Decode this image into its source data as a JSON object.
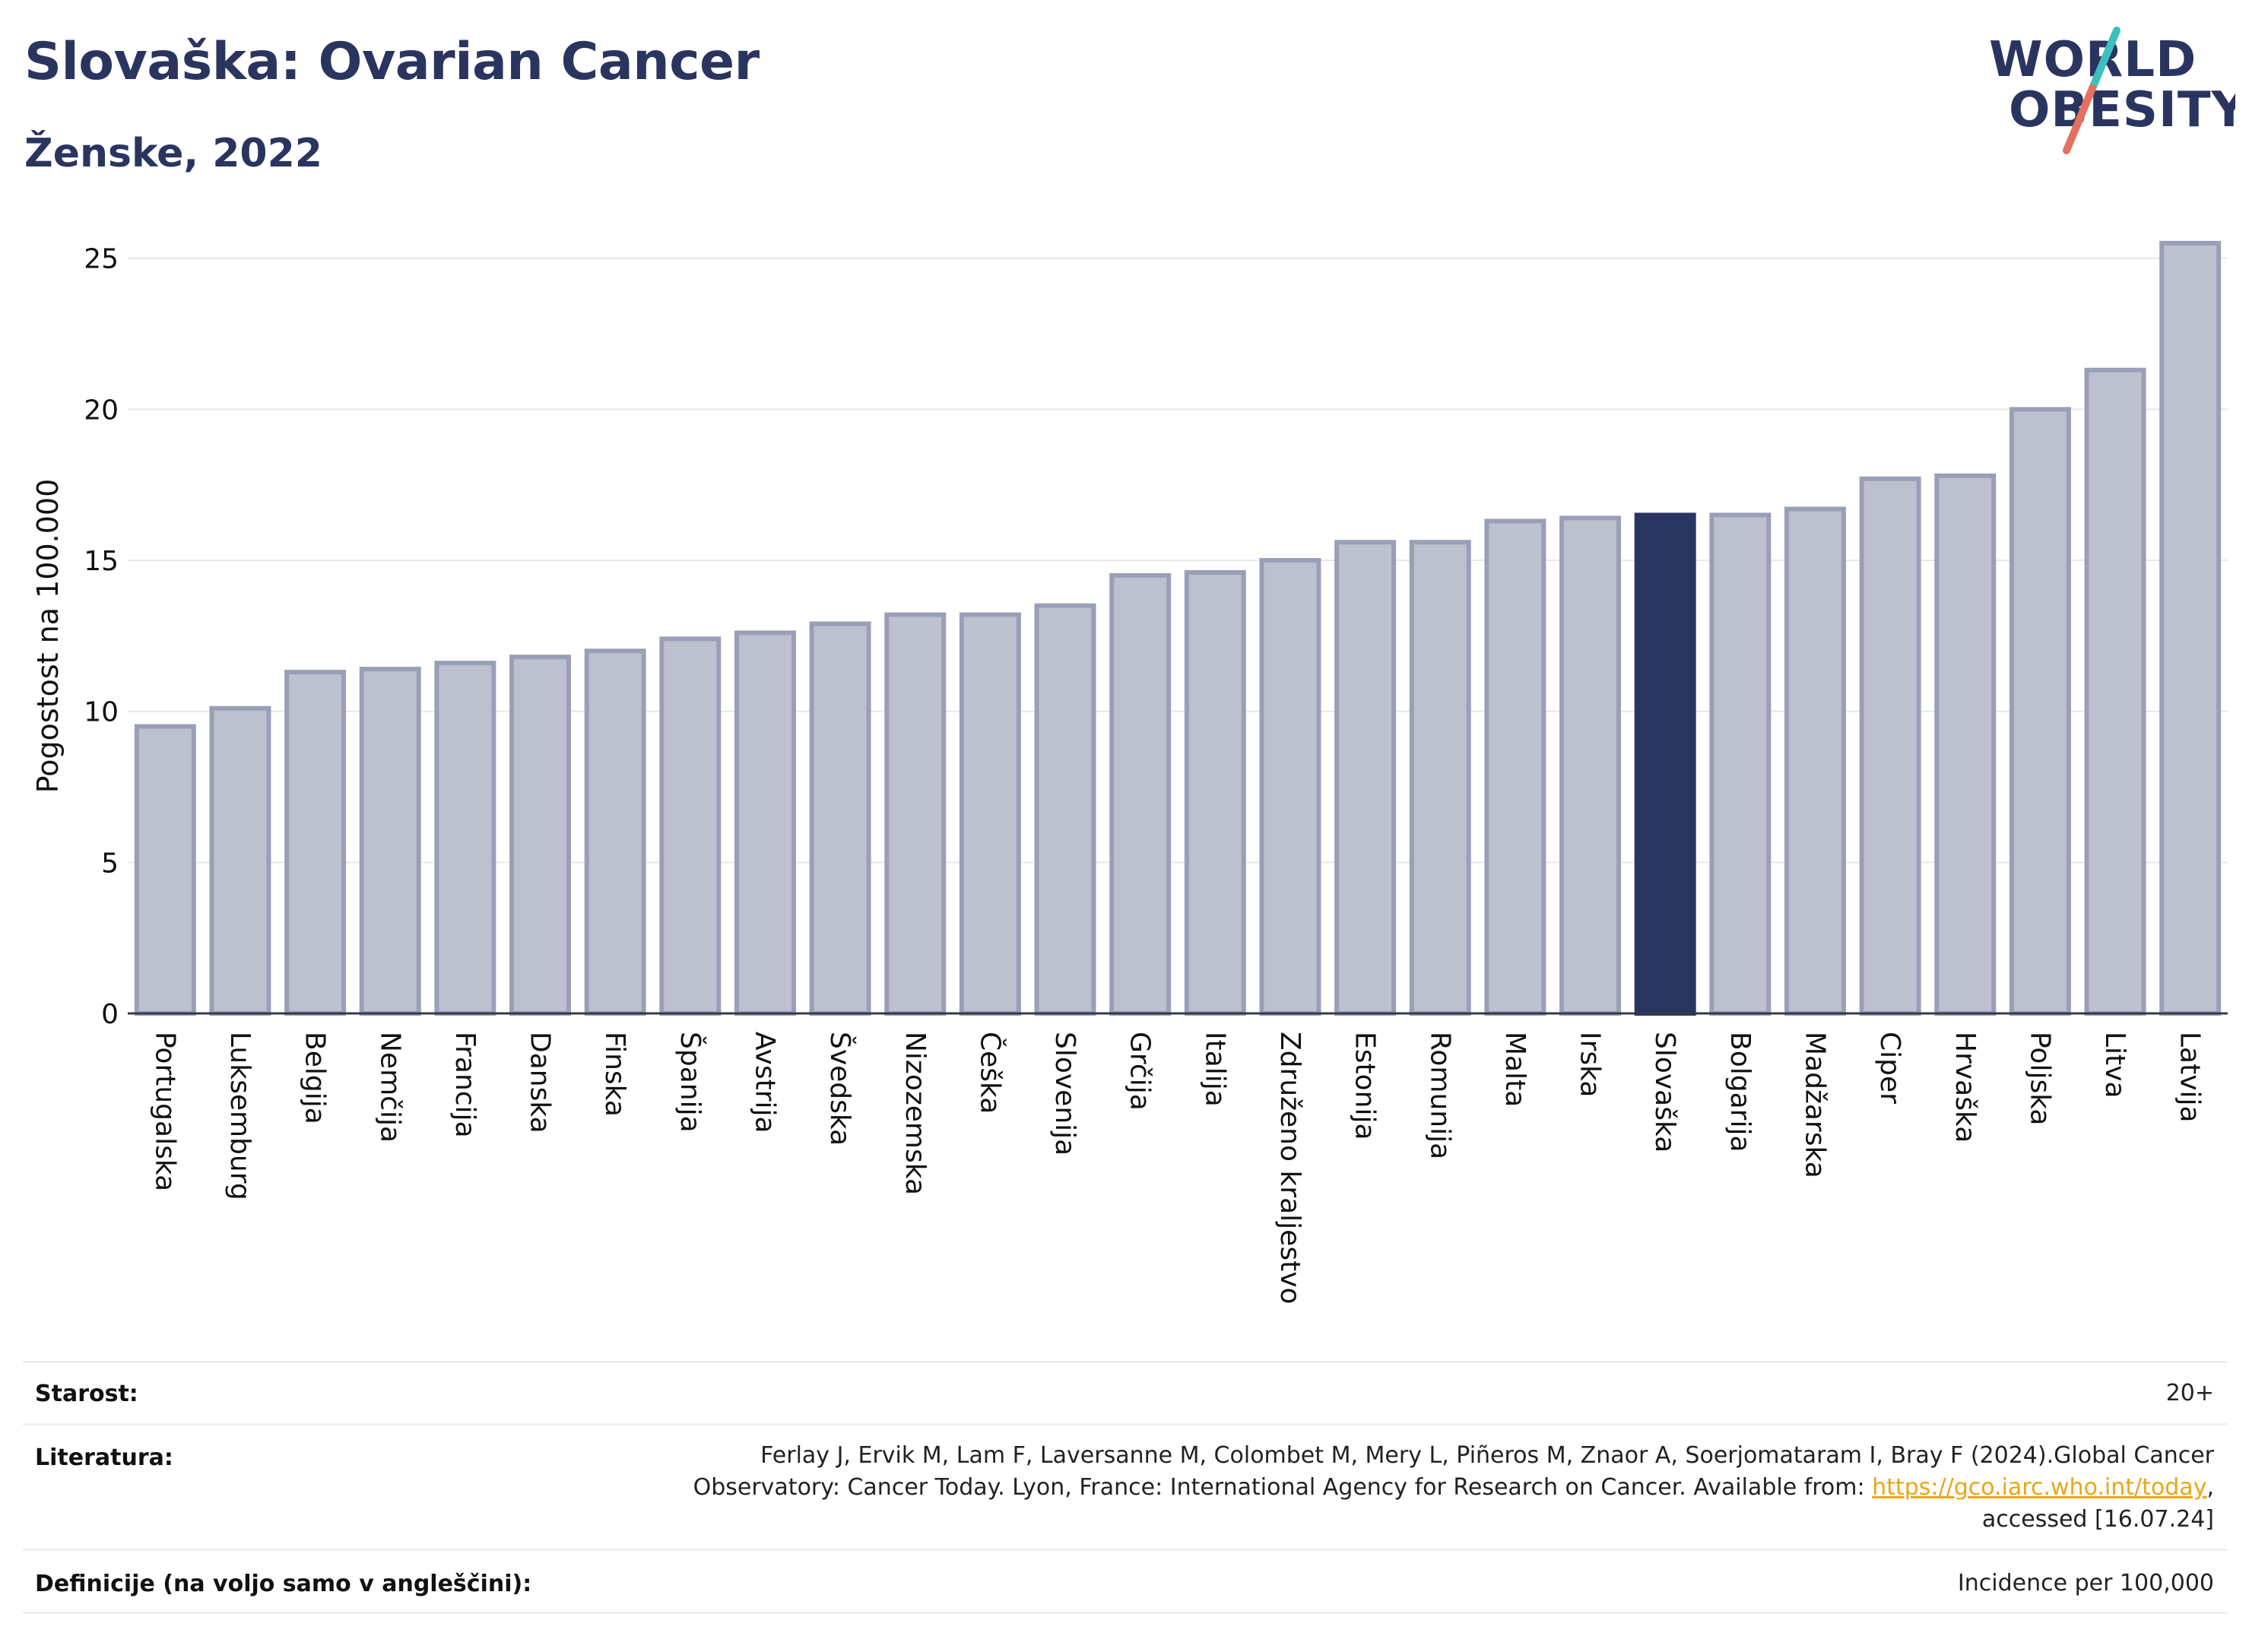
{
  "header": {
    "title": "Slovaška: Ovarian Cancer",
    "subtitle": "Ženske, 2022",
    "logo_text_line1": "WORLD",
    "logo_text_line2": "OBESITY"
  },
  "colors": {
    "title": "#2a355f",
    "bar_default": "#bdc0cf",
    "bar_border": "#9a9fb8",
    "bar_highlight": "#2a355f",
    "logo_navy": "#2a355f",
    "logo_teal": "#3bbfbf",
    "logo_coral": "#e4715f",
    "link": "#e6a817"
  },
  "chart_data": {
    "type": "bar",
    "ylabel": "Pogostost na 100.000",
    "xlabel": "",
    "ylim": [
      0,
      26
    ],
    "yticks": [
      0,
      5,
      10,
      15,
      20,
      25
    ],
    "grid": true,
    "highlight": "Slovaška",
    "categories": [
      "Portugalska",
      "Luksemburg",
      "Belgija",
      "Nemčija",
      "Francija",
      "Danska",
      "Finska",
      "Španija",
      "Avstrija",
      "Švedska",
      "Nizozemska",
      "Češka",
      "Slovenija",
      "Grčija",
      "Italija",
      "Združeno kraljestvo",
      "Estonija",
      "Romunija",
      "Malta",
      "Irska",
      "Slovaška",
      "Bolgarija",
      "Madžarska",
      "Ciper",
      "Hrvaška",
      "Poljska",
      "Litva",
      "Latvija"
    ],
    "values": [
      9.5,
      10.1,
      11.3,
      11.4,
      11.6,
      11.8,
      12.0,
      12.4,
      12.6,
      12.9,
      13.2,
      13.2,
      13.5,
      14.5,
      14.6,
      15.0,
      15.6,
      15.6,
      16.3,
      16.4,
      16.5,
      16.5,
      16.7,
      17.7,
      17.8,
      20.0,
      21.3,
      25.5
    ]
  },
  "info": {
    "age_label": "Starost:",
    "age_value": "20+",
    "ref_label": "Literatura:",
    "ref_line1": "Ferlay J, Ervik M, Lam F, Laversanne M, Colombet M, Mery L, Piñeros M, Znaor A, Soerjomataram I, Bray F (2024).Global Cancer",
    "ref_line2_pre": "Observatory: Cancer Today. Lyon, France: International Agency for Research on Cancer. Available from: ",
    "ref_link": "https://gco.iarc.who.int/today",
    "ref_line2_post": ",",
    "ref_line3": "accessed [16.07.24]",
    "def_label": "Definicije (na voljo samo v angleščini):",
    "def_value": "Incidence per 100,000"
  }
}
